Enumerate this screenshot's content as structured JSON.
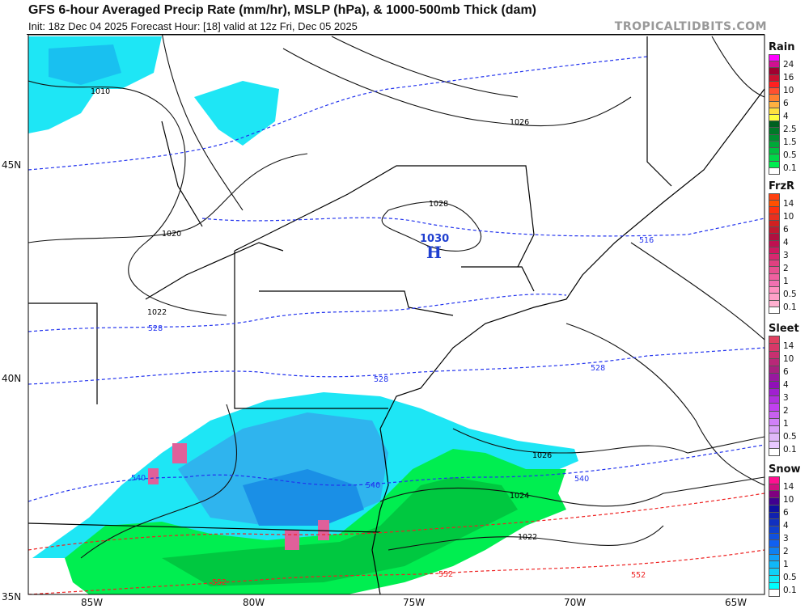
{
  "header": {
    "title": "GFS 6-hour Averaged Precip Rate (mm/hr), MSLP (hPa), & 1000-500mb Thick (dam)",
    "subtitle": "Init: 18z Dec 04 2025   Forecast Hour: [18]   valid at 12z Fri, Dec 05 2025",
    "credit": "TROPICALTIDBITS.COM"
  },
  "axes": {
    "lat_labels": [
      "45N",
      "40N",
      "35N"
    ],
    "lon_labels": [
      "85W",
      "80W",
      "75W",
      "70W",
      "65W"
    ]
  },
  "map": {
    "high_pressure": {
      "value": "1030",
      "symbol": "H",
      "color": "#1f3fd0"
    },
    "isobar_labels": [
      "1010",
      "1020",
      "1022",
      "1026",
      "1028",
      "1026",
      "1024",
      "1022"
    ],
    "thickness_labels_blue": [
      "516",
      "528",
      "528",
      "528",
      "540",
      "540",
      "540"
    ],
    "thickness_labels_red": [
      "552",
      "552",
      "552"
    ],
    "colors": {
      "thickness_cold": "#2233ee",
      "thickness_warm": "#ee2222",
      "snow_light": "#00e5f5",
      "snow_moderate": "#1a9be8",
      "rain_light": "#00ee44",
      "rain_moderate": "#00bb33",
      "mix": "#e0609a"
    }
  },
  "legends": [
    {
      "title": "Rain",
      "labels": [
        "24",
        "16",
        "10",
        "6",
        "4",
        "2.5",
        "1.5",
        "0.5",
        "0.1"
      ],
      "colors": [
        "#ff00ff",
        "#d01090",
        "#a00030",
        "#c81030",
        "#ff2020",
        "#ff5030",
        "#ff8030",
        "#ffb040",
        "#ffe040",
        "#ffff40",
        "#006020",
        "#007a28",
        "#008f30",
        "#00a838",
        "#00c040",
        "#00d848",
        "#00ee50",
        "#ffffff"
      ]
    },
    {
      "title": "FrzR",
      "labels": [
        "14",
        "10",
        "6",
        "4",
        "3",
        "2",
        "1",
        "0.5",
        "0.1"
      ],
      "colors": [
        "#ff4010",
        "#ff5000",
        "#ff3010",
        "#e83020",
        "#d02020",
        "#c01830",
        "#b01040",
        "#c01050",
        "#d01860",
        "#d82870",
        "#e04080",
        "#e85090",
        "#f060a0",
        "#f070b0",
        "#ff90c0",
        "#ffa0c8",
        "#ffb0d0",
        "#ffffff"
      ]
    },
    {
      "title": "Sleet",
      "labels": [
        "14",
        "10",
        "6",
        "4",
        "3",
        "2",
        "1",
        "0.5",
        "0.1"
      ],
      "colors": [
        "#e04060",
        "#d83868",
        "#c83070",
        "#b82878",
        "#a82080",
        "#9818a0",
        "#9010b8",
        "#a020d0",
        "#b030e0",
        "#c040f0",
        "#c860f0",
        "#d080f8",
        "#d8a0f8",
        "#e0b8f8",
        "#e8c8ff",
        "#ffffff"
      ]
    },
    {
      "title": "Snow",
      "labels": [
        "14",
        "10",
        "6",
        "4",
        "3",
        "2",
        "1",
        "0.5",
        "0.1"
      ],
      "colors": [
        "#ff1090",
        "#d01080",
        "#800080",
        "#400090",
        "#1010a0",
        "#1020b0",
        "#1030c0",
        "#1040d0",
        "#1050e0",
        "#1060f0",
        "#1080f0",
        "#10a0f8",
        "#10b8f8",
        "#10d0f8",
        "#10e8f8",
        "#00ffff",
        "#ffffff"
      ]
    }
  ]
}
